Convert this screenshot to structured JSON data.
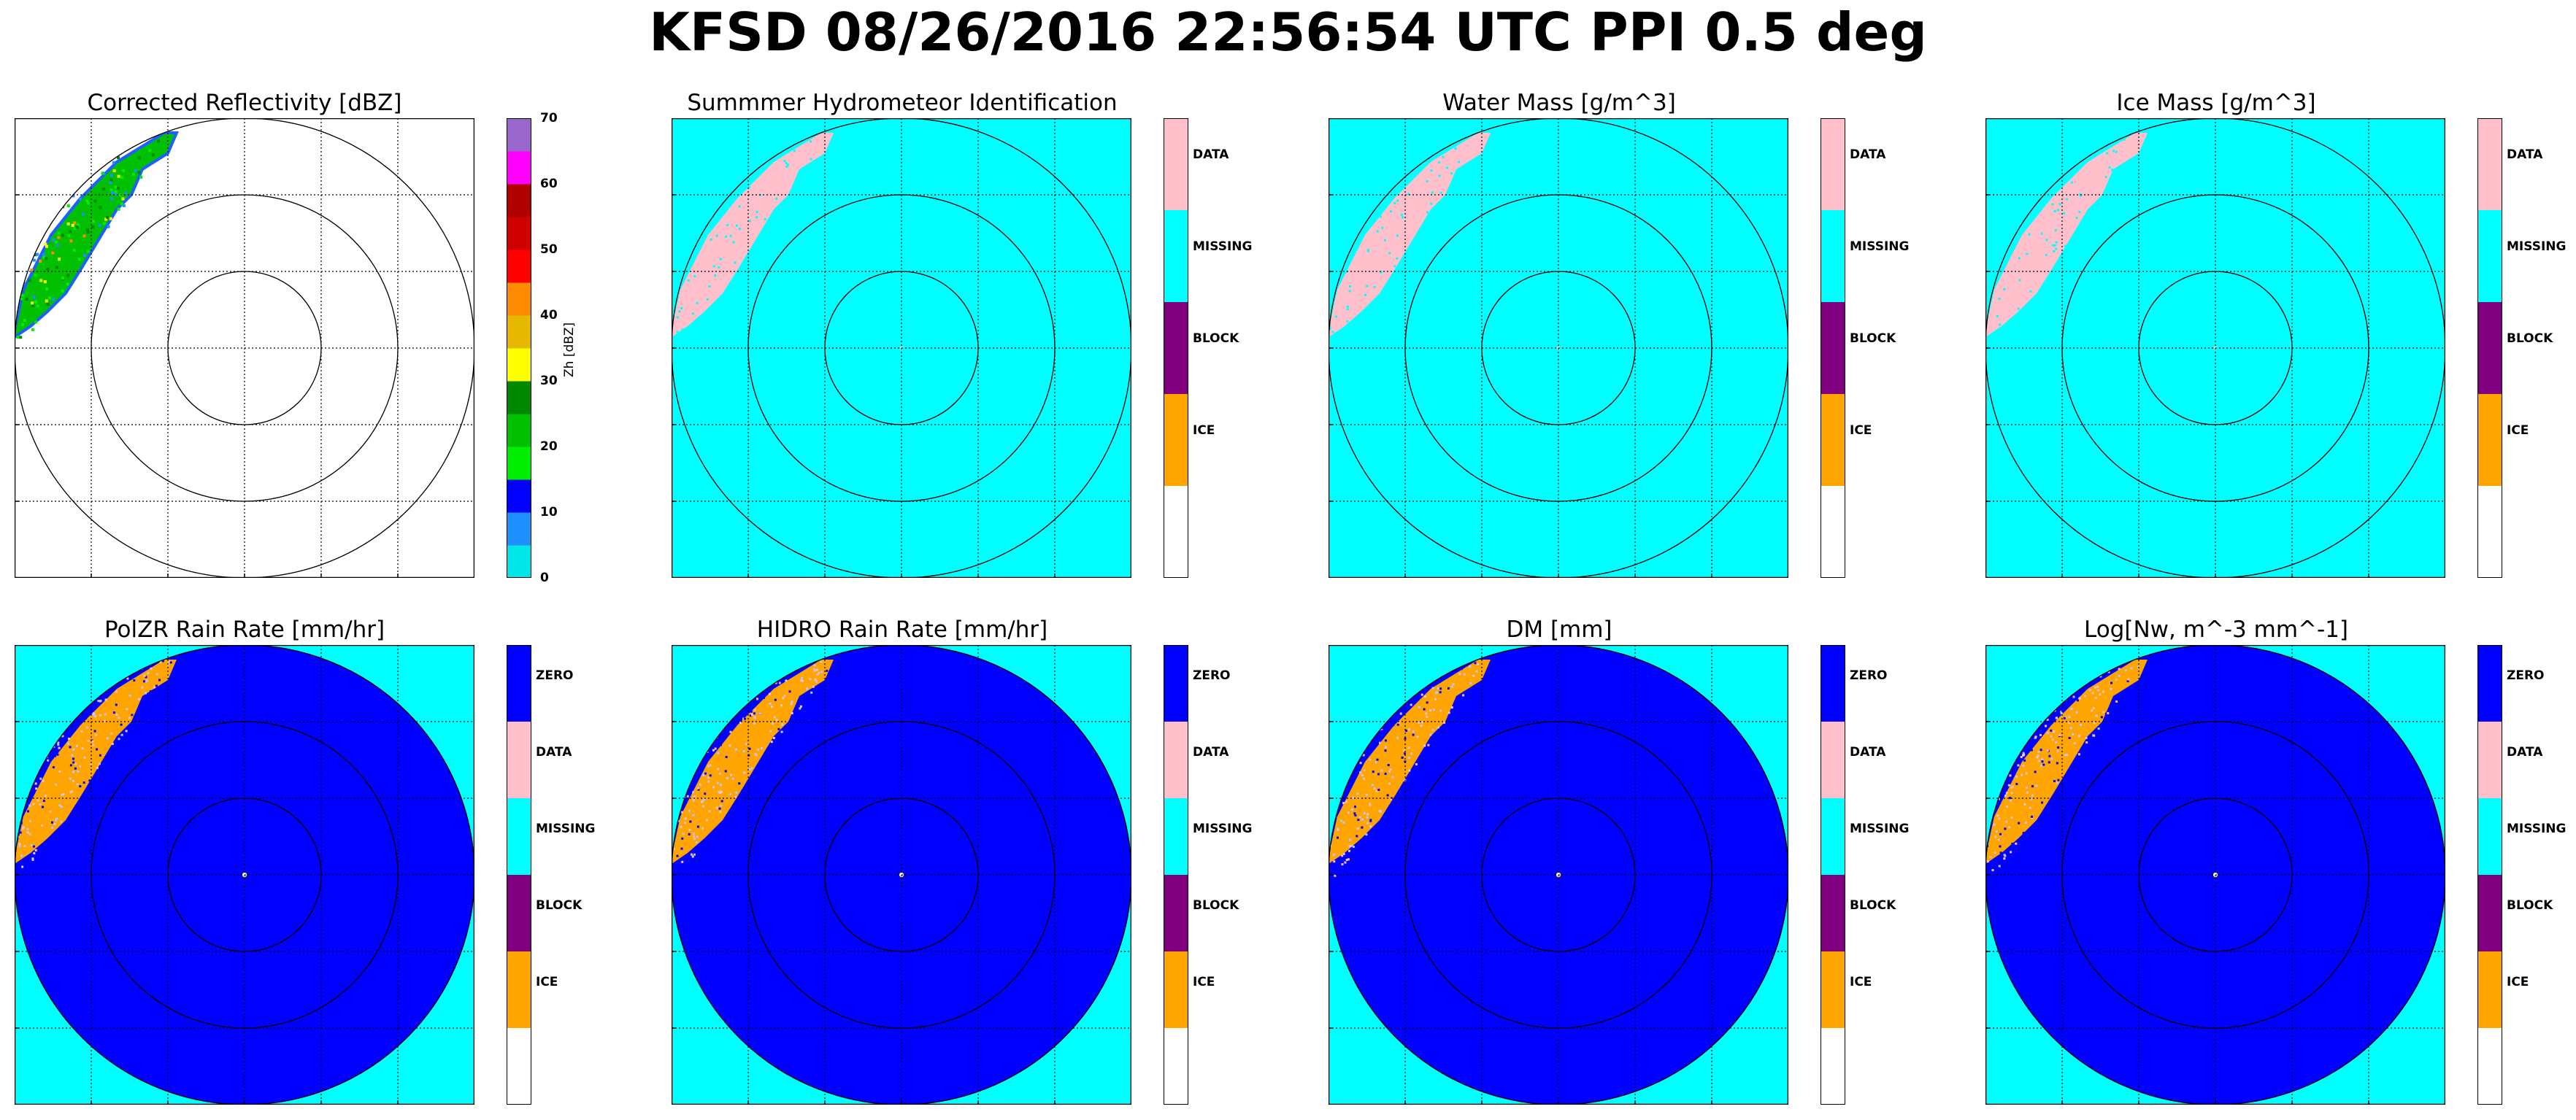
{
  "figure_title": "KFSD 08/26/2016 22:56:54 UTC PPI 0.5 deg",
  "panel_titles": [
    "Corrected Reflectivity [dBZ]",
    "Summmer Hydrometeor Identification",
    "Water Mass [g/m^3]",
    "Ice Mass [g/m^3]",
    "PolZR Rain Rate [mm/hr]",
    "HIDRO Rain Rate [mm/hr]",
    "DM [mm]",
    "Log[Nw, m^-3 mm^-1]"
  ],
  "colors": {
    "cyan": "#00ffff",
    "blue": "#0000ff",
    "pink": "#ffc0cb",
    "orange": "#ffa500",
    "purple": "#800080",
    "white": "#ffffff"
  },
  "chart_data": [
    {
      "type": "heatmap",
      "title": "Corrected Reflectivity [dBZ]",
      "colorbar": {
        "label": "Zh [dBZ]",
        "range": [
          0,
          70
        ],
        "tick_labels": [
          "0",
          "10",
          "20",
          "30",
          "40",
          "50",
          "60",
          "70"
        ],
        "colors": [
          "#00e5e5",
          "#1e90ff",
          "#0000ff",
          "#00ee00",
          "#00c000",
          "#008800",
          "#ffff00",
          "#e6b800",
          "#ff8c00",
          "#ff0000",
          "#d00000",
          "#b00000",
          "#ff00ff",
          "#9966cc"
        ]
      },
      "range_rings": 3,
      "grid": true,
      "echo": "northwest-edge"
    },
    {
      "type": "heatmap",
      "title": "Summmer Hydrometeor Identification",
      "colorbar": {
        "categories": [
          "DATA",
          "MISSING",
          "BLOCK",
          "ICE",
          ""
        ],
        "colors": [
          "#ffc0cb",
          "#00ffff",
          "#800080",
          "#ffa500",
          "#ffffff"
        ]
      },
      "background": "MISSING",
      "range_rings": 3,
      "grid": true,
      "echo": "DATA in northwest"
    },
    {
      "type": "heatmap",
      "title": "Water Mass [g/m^3]",
      "colorbar": {
        "categories": [
          "DATA",
          "MISSING",
          "BLOCK",
          "ICE",
          ""
        ],
        "colors": [
          "#ffc0cb",
          "#00ffff",
          "#800080",
          "#ffa500",
          "#ffffff"
        ]
      },
      "background": "MISSING",
      "range_rings": 3,
      "grid": true,
      "echo": "DATA in northwest"
    },
    {
      "type": "heatmap",
      "title": "Ice Mass [g/m^3]",
      "colorbar": {
        "categories": [
          "DATA",
          "MISSING",
          "BLOCK",
          "ICE",
          ""
        ],
        "colors": [
          "#ffc0cb",
          "#00ffff",
          "#800080",
          "#ffa500",
          "#ffffff"
        ]
      },
      "background": "MISSING",
      "range_rings": 3,
      "grid": true,
      "echo": "DATA in northwest"
    },
    {
      "type": "heatmap",
      "title": "PolZR Rain Rate [mm/hr]",
      "colorbar": {
        "categories": [
          "ZERO",
          "DATA",
          "MISSING",
          "BLOCK",
          "ICE",
          ""
        ],
        "colors": [
          "#0000ff",
          "#ffc0cb",
          "#00ffff",
          "#800080",
          "#ffa500",
          "#ffffff"
        ]
      },
      "inside_range": "ZERO",
      "outside_range": "MISSING",
      "range_rings": 3,
      "grid": true,
      "echo": "mixed orange/pink/blue in northwest"
    },
    {
      "type": "heatmap",
      "title": "HIDRO Rain Rate [mm/hr]",
      "colorbar": {
        "categories": [
          "ZERO",
          "DATA",
          "MISSING",
          "BLOCK",
          "ICE",
          ""
        ],
        "colors": [
          "#0000ff",
          "#ffc0cb",
          "#00ffff",
          "#800080",
          "#ffa500",
          "#ffffff"
        ]
      },
      "inside_range": "ZERO",
      "outside_range": "MISSING",
      "range_rings": 3,
      "grid": true,
      "echo": "mixed orange/pink/blue in northwest"
    },
    {
      "type": "heatmap",
      "title": "DM [mm]",
      "colorbar": {
        "categories": [
          "ZERO",
          "DATA",
          "MISSING",
          "BLOCK",
          "ICE",
          ""
        ],
        "colors": [
          "#0000ff",
          "#ffc0cb",
          "#00ffff",
          "#800080",
          "#ffa500",
          "#ffffff"
        ]
      },
      "inside_range": "ZERO",
      "outside_range": "MISSING",
      "range_rings": 3,
      "grid": true,
      "echo": "mixed orange/pink/blue in northwest"
    },
    {
      "type": "heatmap",
      "title": "Log[Nw, m^-3 mm^-1]",
      "colorbar": {
        "categories": [
          "ZERO",
          "DATA",
          "MISSING",
          "BLOCK",
          "ICE",
          ""
        ],
        "colors": [
          "#0000ff",
          "#ffc0cb",
          "#00ffff",
          "#800080",
          "#ffa500",
          "#ffffff"
        ]
      },
      "inside_range": "ZERO",
      "outside_range": "MISSING",
      "range_rings": 3,
      "grid": true,
      "echo": "mixed orange/pink/blue in northwest"
    }
  ]
}
